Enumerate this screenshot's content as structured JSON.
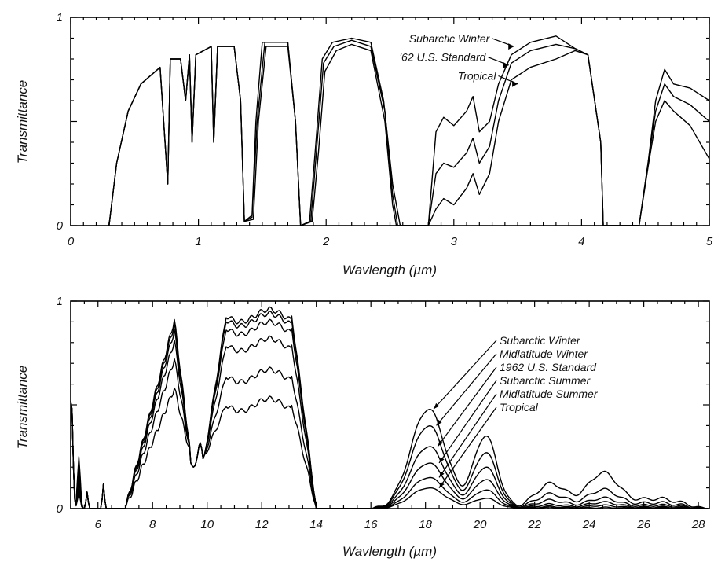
{
  "chart_data": [
    {
      "type": "line",
      "xlabel": "Wavlength (µm)",
      "ylabel": "Transmittance",
      "xlim": [
        0,
        5
      ],
      "ylim": [
        0,
        1
      ],
      "x_ticks": [
        "0",
        "1",
        "2",
        "3",
        "4",
        "5"
      ],
      "y_ticks": [
        "0",
        "1"
      ],
      "annotations": [
        "Subarctic Winter",
        "'62 U.S. Standard",
        "Tropical"
      ],
      "series": [
        {
          "name": "Subarctic Winter",
          "points": [
            [
              0.3,
              0.0
            ],
            [
              0.36,
              0.3
            ],
            [
              0.45,
              0.55
            ],
            [
              0.55,
              0.68
            ],
            [
              0.7,
              0.76
            ],
            [
              0.76,
              0.2
            ],
            [
              0.78,
              0.8
            ],
            [
              0.86,
              0.8
            ],
            [
              0.9,
              0.6
            ],
            [
              0.93,
              0.82
            ],
            [
              0.95,
              0.4
            ],
            [
              0.98,
              0.82
            ],
            [
              1.1,
              0.86
            ],
            [
              1.12,
              0.4
            ],
            [
              1.15,
              0.86
            ],
            [
              1.28,
              0.86
            ],
            [
              1.33,
              0.6
            ],
            [
              1.36,
              0.02
            ],
            [
              1.42,
              0.05
            ],
            [
              1.45,
              0.5
            ],
            [
              1.5,
              0.88
            ],
            [
              1.7,
              0.88
            ],
            [
              1.76,
              0.5
            ],
            [
              1.8,
              0.0
            ],
            [
              1.87,
              0.02
            ],
            [
              1.92,
              0.4
            ],
            [
              1.97,
              0.8
            ],
            [
              2.05,
              0.88
            ],
            [
              2.2,
              0.9
            ],
            [
              2.35,
              0.88
            ],
            [
              2.45,
              0.6
            ],
            [
              2.52,
              0.2
            ],
            [
              2.58,
              0.0
            ],
            [
              2.8,
              0.0
            ],
            [
              2.86,
              0.45
            ],
            [
              2.92,
              0.52
            ],
            [
              3.0,
              0.48
            ],
            [
              3.1,
              0.55
            ],
            [
              3.15,
              0.62
            ],
            [
              3.2,
              0.45
            ],
            [
              3.28,
              0.5
            ],
            [
              3.35,
              0.68
            ],
            [
              3.45,
              0.82
            ],
            [
              3.6,
              0.88
            ],
            [
              3.8,
              0.91
            ],
            [
              3.95,
              0.85
            ],
            [
              4.05,
              0.82
            ],
            [
              4.15,
              0.4
            ],
            [
              4.17,
              0.0
            ],
            [
              4.45,
              0.0
            ],
            [
              4.52,
              0.3
            ],
            [
              4.58,
              0.6
            ],
            [
              4.65,
              0.75
            ],
            [
              4.72,
              0.68
            ],
            [
              4.85,
              0.66
            ],
            [
              5.0,
              0.6
            ]
          ]
        },
        {
          "name": "'62 U.S. Standard",
          "points": [
            [
              0.3,
              0.0
            ],
            [
              0.36,
              0.3
            ],
            [
              0.45,
              0.55
            ],
            [
              0.55,
              0.68
            ],
            [
              0.7,
              0.76
            ],
            [
              0.76,
              0.2
            ],
            [
              0.78,
              0.8
            ],
            [
              0.86,
              0.8
            ],
            [
              0.9,
              0.6
            ],
            [
              0.93,
              0.82
            ],
            [
              0.95,
              0.4
            ],
            [
              0.98,
              0.82
            ],
            [
              1.1,
              0.86
            ],
            [
              1.12,
              0.4
            ],
            [
              1.15,
              0.86
            ],
            [
              1.28,
              0.86
            ],
            [
              1.33,
              0.6
            ],
            [
              1.36,
              0.02
            ],
            [
              1.42,
              0.04
            ],
            [
              1.46,
              0.5
            ],
            [
              1.52,
              0.88
            ],
            [
              1.7,
              0.88
            ],
            [
              1.76,
              0.5
            ],
            [
              1.8,
              0.0
            ],
            [
              1.88,
              0.02
            ],
            [
              1.93,
              0.4
            ],
            [
              1.98,
              0.78
            ],
            [
              2.06,
              0.86
            ],
            [
              2.2,
              0.89
            ],
            [
              2.35,
              0.86
            ],
            [
              2.46,
              0.55
            ],
            [
              2.52,
              0.15
            ],
            [
              2.56,
              0.0
            ],
            [
              2.8,
              0.0
            ],
            [
              2.86,
              0.25
            ],
            [
              2.92,
              0.3
            ],
            [
              3.0,
              0.28
            ],
            [
              3.1,
              0.35
            ],
            [
              3.15,
              0.42
            ],
            [
              3.2,
              0.3
            ],
            [
              3.28,
              0.38
            ],
            [
              3.35,
              0.6
            ],
            [
              3.45,
              0.78
            ],
            [
              3.6,
              0.84
            ],
            [
              3.8,
              0.87
            ],
            [
              3.95,
              0.85
            ],
            [
              4.05,
              0.82
            ],
            [
              4.15,
              0.4
            ],
            [
              4.17,
              0.0
            ],
            [
              4.45,
              0.0
            ],
            [
              4.52,
              0.3
            ],
            [
              4.58,
              0.55
            ],
            [
              4.65,
              0.68
            ],
            [
              4.72,
              0.62
            ],
            [
              4.85,
              0.58
            ],
            [
              5.0,
              0.5
            ]
          ]
        },
        {
          "name": "Tropical",
          "points": [
            [
              0.3,
              0.0
            ],
            [
              0.36,
              0.3
            ],
            [
              0.45,
              0.55
            ],
            [
              0.55,
              0.68
            ],
            [
              0.7,
              0.76
            ],
            [
              0.76,
              0.2
            ],
            [
              0.78,
              0.8
            ],
            [
              0.86,
              0.8
            ],
            [
              0.9,
              0.6
            ],
            [
              0.93,
              0.82
            ],
            [
              0.95,
              0.4
            ],
            [
              0.98,
              0.82
            ],
            [
              1.1,
              0.86
            ],
            [
              1.12,
              0.4
            ],
            [
              1.15,
              0.86
            ],
            [
              1.28,
              0.86
            ],
            [
              1.33,
              0.6
            ],
            [
              1.36,
              0.02
            ],
            [
              1.43,
              0.03
            ],
            [
              1.47,
              0.5
            ],
            [
              1.53,
              0.86
            ],
            [
              1.7,
              0.86
            ],
            [
              1.76,
              0.5
            ],
            [
              1.8,
              0.0
            ],
            [
              1.89,
              0.02
            ],
            [
              1.94,
              0.35
            ],
            [
              1.99,
              0.74
            ],
            [
              2.08,
              0.84
            ],
            [
              2.2,
              0.87
            ],
            [
              2.35,
              0.84
            ],
            [
              2.46,
              0.5
            ],
            [
              2.52,
              0.1
            ],
            [
              2.55,
              0.0
            ],
            [
              2.8,
              0.0
            ],
            [
              2.86,
              0.08
            ],
            [
              2.92,
              0.13
            ],
            [
              3.0,
              0.1
            ],
            [
              3.1,
              0.18
            ],
            [
              3.15,
              0.25
            ],
            [
              3.2,
              0.15
            ],
            [
              3.28,
              0.25
            ],
            [
              3.35,
              0.5
            ],
            [
              3.45,
              0.7
            ],
            [
              3.6,
              0.76
            ],
            [
              3.8,
              0.8
            ],
            [
              3.95,
              0.84
            ],
            [
              4.05,
              0.82
            ],
            [
              4.15,
              0.4
            ],
            [
              4.17,
              0.0
            ],
            [
              4.45,
              0.0
            ],
            [
              4.52,
              0.28
            ],
            [
              4.58,
              0.5
            ],
            [
              4.65,
              0.6
            ],
            [
              4.72,
              0.55
            ],
            [
              4.85,
              0.48
            ],
            [
              5.0,
              0.32
            ]
          ]
        }
      ]
    },
    {
      "type": "line",
      "xlabel": "Wavlength (µm)",
      "ylabel": "Transmittance",
      "xlim": [
        5,
        28.4
      ],
      "ylim": [
        0,
        1
      ],
      "x_ticks": [
        "6",
        "8",
        "10",
        "12",
        "14",
        "16",
        "18",
        "20",
        "22",
        "24",
        "26",
        "28"
      ],
      "y_ticks": [
        "0",
        "1"
      ],
      "annotations": [
        "Subarctic Winter",
        "Midlatitude Winter",
        "1962 U.S. Standard",
        "Subarctic Summer",
        "Midlatitude Summer",
        "Tropical"
      ],
      "series": [
        {
          "name": "Subarctic Winter",
          "peaks": [
            0.91,
            0.93,
            0.48,
            0.35,
            0.12,
            0.17
          ],
          "band_scale": 1.0
        },
        {
          "name": "Midlatitude Winter",
          "peaks": [
            0.89,
            0.91,
            0.4,
            0.27,
            0.07,
            0.09
          ],
          "band_scale": 0.85
        },
        {
          "name": "1962 U.S. Standard",
          "peaks": [
            0.86,
            0.87,
            0.3,
            0.2,
            0.04,
            0.05
          ],
          "band_scale": 0.7
        },
        {
          "name": "Subarctic Summer",
          "peaks": [
            0.81,
            0.79,
            0.22,
            0.14,
            0.02,
            0.03
          ],
          "band_scale": 0.55
        },
        {
          "name": "Midlatitude Summer",
          "peaks": [
            0.72,
            0.64,
            0.15,
            0.09,
            0.01,
            0.015
          ],
          "band_scale": 0.4
        },
        {
          "name": "Tropical",
          "peaks": [
            0.58,
            0.5,
            0.1,
            0.05,
            0.005,
            0.005
          ],
          "band_scale": 0.3
        }
      ]
    }
  ]
}
